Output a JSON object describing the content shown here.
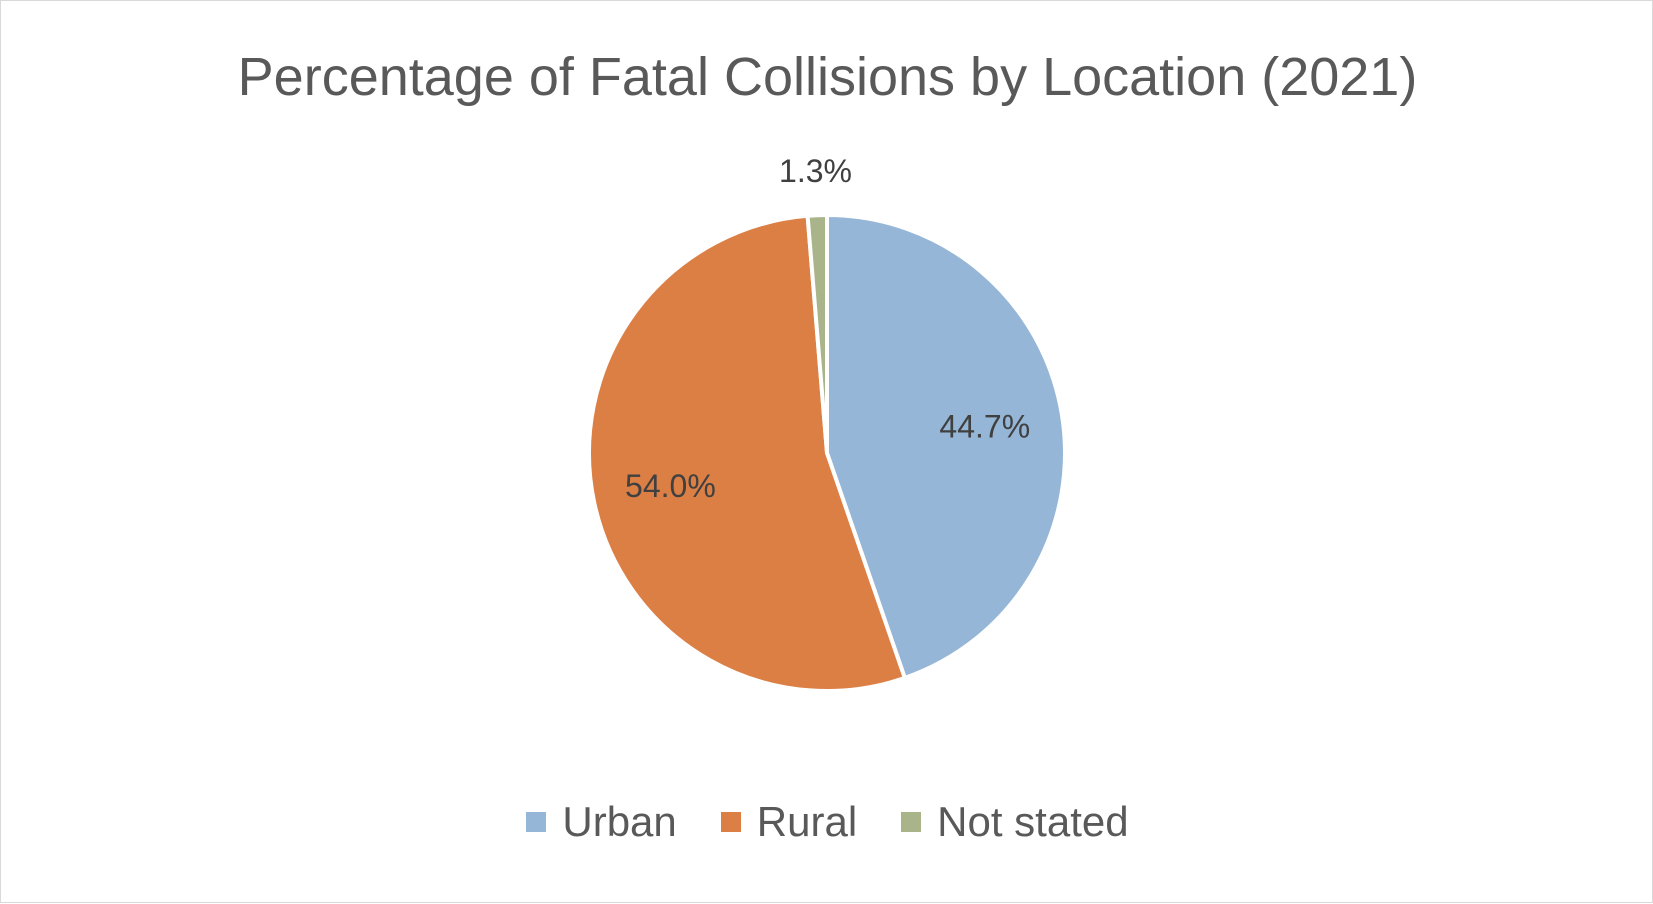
{
  "chart_data": {
    "type": "pie",
    "title": "Percentage of Fatal Collisions by Location (2021)",
    "categories": [
      "Urban",
      "Rural",
      "Not stated"
    ],
    "values": [
      44.7,
      54.0,
      1.3
    ],
    "labels": [
      "44.7%",
      "54.0%",
      "1.3%"
    ],
    "colors": [
      "#95b6d6",
      "#dc7f45",
      "#a9b48a"
    ],
    "legend": "bottom"
  }
}
